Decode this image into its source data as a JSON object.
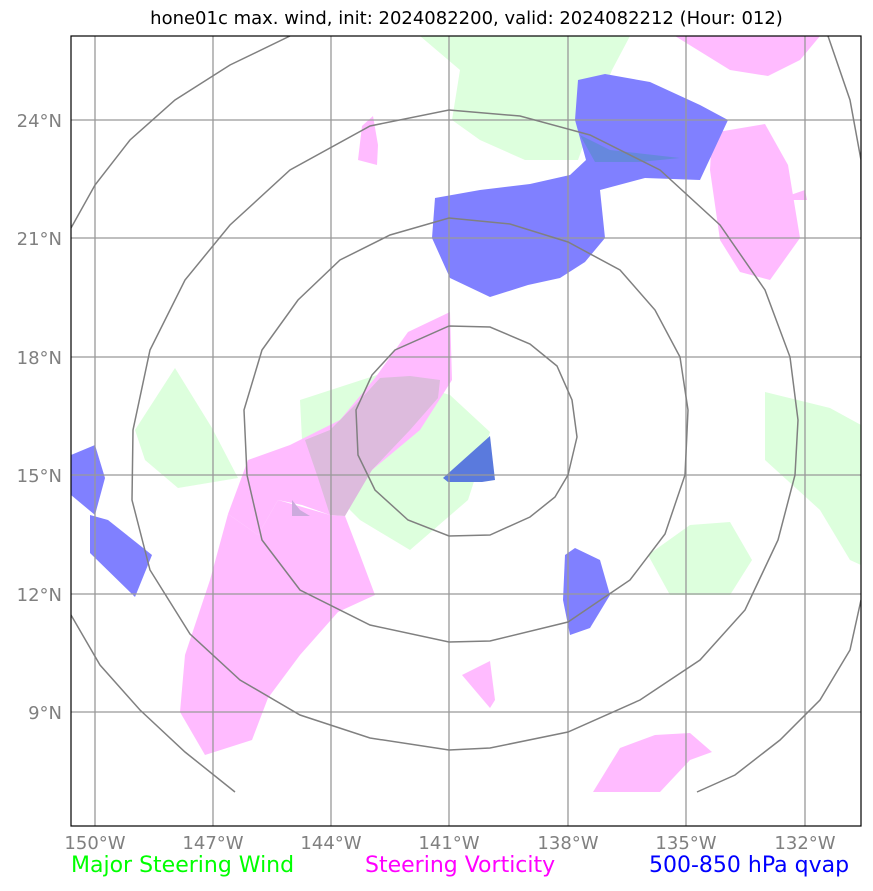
{
  "title": "hone01c max. wind, init: 2024082200, valid: 2024082212 (Hour: 012)",
  "map": {
    "lon_labels": [
      "150°W",
      "147°W",
      "144°W",
      "141°W",
      "138°W",
      "135°W",
      "132°W"
    ],
    "lat_labels": [
      "24°N",
      "21°N",
      "18°N",
      "15°N",
      "12°N",
      "9°N"
    ]
  },
  "legend": {
    "wind": "Major Steering Wind",
    "vorticity": "Steering Vorticity",
    "qvap": "500-850 hPa qvap"
  },
  "colors": {
    "wind": "#00ff00",
    "vorticity": "#ff00ff",
    "qvap": "#0000ff",
    "wind_fill": "#ddffdd",
    "vorticity_fill": "#ffbbff",
    "qvap_fill": "#8080ff"
  }
}
